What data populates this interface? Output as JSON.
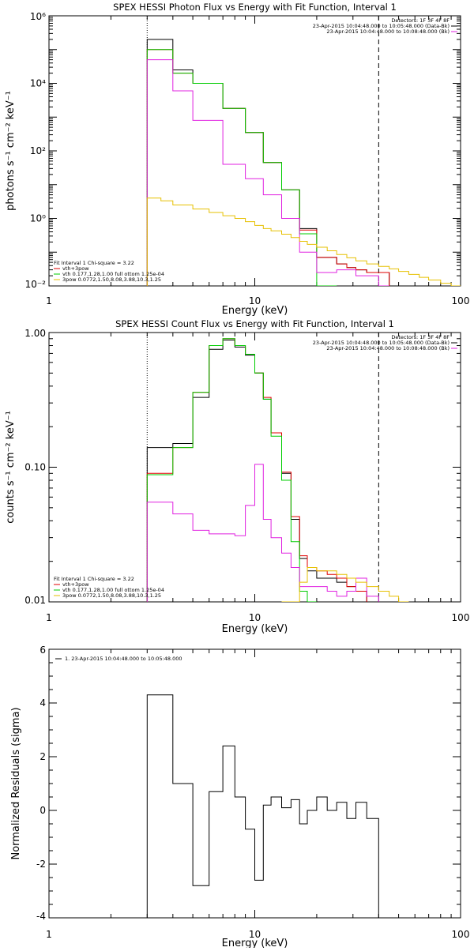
{
  "colors": {
    "black": "#000000",
    "red": "#e00000",
    "green": "#00cc00",
    "magenta": "#e020e0",
    "yellow": "#e6c000"
  },
  "chart_data": [
    {
      "type": "line",
      "title": "SPEX HESSI Photon Flux vs Energy with Fit Function, Interval 1",
      "xlabel": "Energy (keV)",
      "ylabel": "photons s⁻¹ cm⁻² keV⁻¹",
      "x_scale": "log",
      "y_scale": "log",
      "xlim": [
        1,
        100
      ],
      "ylim": [
        0.01,
        1000000
      ],
      "x_ticks": [
        {
          "v": 1,
          "label": "1"
        },
        {
          "v": 10,
          "label": "10"
        },
        {
          "v": 100,
          "label": "100"
        }
      ],
      "y_ticks": [
        {
          "v": 0.01,
          "label": "10⁻²"
        },
        {
          "v": 1,
          "label": "10⁰"
        },
        {
          "v": 100,
          "label": "10²"
        },
        {
          "v": 10000,
          "label": "10⁴"
        },
        {
          "v": 1000000,
          "label": "10⁶"
        }
      ],
      "vlines": [
        {
          "x": 3,
          "style": "dotted"
        },
        {
          "x": 40,
          "style": "dashed"
        }
      ],
      "legend_top_right": [
        {
          "text": "Detectors: 1F 3F 4F 8F",
          "color": ""
        },
        {
          "text": "23-Apr-2015 10:04:48.000 to 10:05:48.000 (Data-Bk)",
          "color": "#000000"
        },
        {
          "text": "23-Apr-2015 10:04:48.000 to 10:08:48.000 (Bk)",
          "color": "#e020e0"
        }
      ],
      "legend_bottom_left": [
        {
          "text": "Fit Interval 1   Chi-square = 3.22",
          "color": ""
        },
        {
          "text": "vth+3pow",
          "color": "#e00000"
        },
        {
          "text": "vth 0.177,1.28,1.00  full ottom 1.25e-04",
          "color": "#00cc00"
        },
        {
          "text": "3pow 0.0772,1.50,8.08,3.88,10.3,1.25",
          "color": "#e6c000"
        }
      ],
      "edges": [
        3,
        3.5,
        4,
        5,
        6,
        7,
        8,
        9,
        10,
        11,
        12,
        13.5,
        15,
        16.5,
        18,
        20,
        22.5,
        25,
        28,
        31,
        35,
        40,
        45,
        50,
        56,
        63,
        70,
        80,
        90,
        100
      ],
      "series": [
        {
          "color": "#000000",
          "values": [
            200000,
            200000,
            25000,
            10000,
            10000,
            1800,
            1800,
            350,
            350,
            45,
            45,
            7,
            7,
            0.5,
            0.5,
            0.07,
            0.07,
            0.045,
            0.035,
            0.03,
            0.025,
            0.025
          ]
        },
        {
          "color": "#e00000",
          "values": [
            100000,
            100000,
            20000,
            10000,
            10000,
            1800,
            1800,
            350,
            350,
            45,
            45,
            7,
            7,
            0.45,
            0.45,
            0.07,
            0.07,
            0.045,
            0.035,
            0.03,
            0.025,
            0.025
          ]
        },
        {
          "color": "#00cc00",
          "values": [
            100000,
            100000,
            20000,
            10000,
            10000,
            1800,
            1800,
            350,
            350,
            45,
            45,
            7,
            7,
            0.35,
            0.35,
            0.01,
            0.005
          ]
        },
        {
          "color": "#e020e0",
          "values": [
            50000,
            50000,
            6000,
            800,
            800,
            40,
            40,
            15,
            15,
            5,
            5,
            1,
            1,
            0.1,
            0.1,
            0.025,
            0.025,
            0.03,
            0.03,
            0.02,
            0.02,
            0.01
          ]
        },
        {
          "color": "#e6c000",
          "values": [
            4,
            3.3,
            2.5,
            1.9,
            1.5,
            1.2,
            1.0,
            0.8,
            0.62,
            0.5,
            0.43,
            0.34,
            0.27,
            0.21,
            0.17,
            0.14,
            0.11,
            0.085,
            0.068,
            0.055,
            0.045,
            0.038,
            0.032,
            0.027,
            0.022,
            0.018,
            0.015,
            0.012,
            0.01
          ]
        }
      ]
    },
    {
      "type": "line",
      "title": "SPEX HESSI Count Flux vs Energy with Fit Function, Interval 1",
      "xlabel": "Energy (keV)",
      "ylabel": "counts s⁻¹ cm⁻² keV⁻¹",
      "x_scale": "log",
      "y_scale": "log",
      "xlim": [
        1,
        100
      ],
      "ylim": [
        0.01,
        1.0
      ],
      "x_ticks": [
        {
          "v": 1,
          "label": "1"
        },
        {
          "v": 10,
          "label": "10"
        },
        {
          "v": 100,
          "label": "100"
        }
      ],
      "y_ticks": [
        {
          "v": 0.01,
          "label": "0.01"
        },
        {
          "v": 0.1,
          "label": "0.10"
        },
        {
          "v": 1,
          "label": "1.00"
        }
      ],
      "vlines": [
        {
          "x": 3,
          "style": "dotted"
        },
        {
          "x": 40,
          "style": "dashed"
        }
      ],
      "legend_top_right": [
        {
          "text": "Detectors: 1F 3F 4F 8F",
          "color": ""
        },
        {
          "text": "23-Apr-2015 10:04:48.000 to 10:05:48.000 (Data-Bk)",
          "color": "#000000"
        },
        {
          "text": "23-Apr-2015 10:04:48.000 to 10:08:48.000 (Bk)",
          "color": "#e020e0"
        }
      ],
      "legend_bottom_left": [
        {
          "text": "Fit Interval 1   Chi-square = 3.22",
          "color": ""
        },
        {
          "text": "vth+3pow",
          "color": "#e00000"
        },
        {
          "text": "vth 0.177,1.28,1.00  full ottom 1.25e-04",
          "color": "#00cc00"
        },
        {
          "text": "3pow 0.0772,1.50,8.08,3.88,10.3,1.25",
          "color": "#e6c000"
        }
      ],
      "edges": [
        3,
        4,
        5,
        6,
        7,
        8,
        9,
        10,
        11,
        12,
        13.5,
        15,
        16.5,
        18,
        20,
        22.5,
        25,
        28,
        31,
        35,
        40,
        45,
        50,
        56
      ],
      "series": [
        {
          "color": "#000000",
          "values": [
            0.14,
            0.15,
            0.33,
            0.75,
            0.88,
            0.78,
            0.68,
            0.5,
            0.32,
            0.18,
            0.09,
            0.041,
            0.021,
            0.017,
            0.015,
            0.015,
            0.014,
            0.013,
            0.012
          ]
        },
        {
          "color": "#e00000",
          "values": [
            0.09,
            0.14,
            0.36,
            0.8,
            0.9,
            0.8,
            0.69,
            0.5,
            0.33,
            0.18,
            0.092,
            0.043,
            0.022,
            0.018,
            0.017,
            0.016,
            0.015,
            0.013,
            0.012
          ]
        },
        {
          "color": "#00cc00",
          "values": [
            0.088,
            0.14,
            0.36,
            0.8,
            0.9,
            0.8,
            0.69,
            0.5,
            0.32,
            0.17,
            0.08,
            0.028,
            0.012,
            0.008
          ]
        },
        {
          "color": "#e020e0",
          "values": [
            0.055,
            0.045,
            0.034,
            0.032,
            0.032,
            0.031,
            0.052,
            0.105,
            0.041,
            0.03,
            0.023,
            0.018,
            0.013,
            0.013,
            0.013,
            0.012,
            0.011,
            0.012,
            0.015,
            0.011
          ]
        },
        {
          "color": "#e6c000",
          "values": [
            null,
            null,
            null,
            null,
            null,
            null,
            null,
            null,
            null,
            null,
            0.008,
            0.01,
            0.014,
            0.018,
            0.017,
            0.017,
            0.016,
            0.015,
            0.014,
            0.013,
            0.012,
            0.011,
            0.01
          ]
        }
      ]
    },
    {
      "type": "line",
      "title": "",
      "xlabel": "Energy (keV)",
      "ylabel": "Normalized Residuals (sigma)",
      "x_scale": "log",
      "y_scale": "linear",
      "xlim": [
        1,
        100
      ],
      "ylim": [
        -4,
        6
      ],
      "x_ticks": [
        {
          "v": 1,
          "label": "1"
        },
        {
          "v": 10,
          "label": "10"
        },
        {
          "v": 100,
          "label": "100"
        }
      ],
      "y_ticks": [
        {
          "v": -4,
          "label": "-4"
        },
        {
          "v": -2,
          "label": "-2"
        },
        {
          "v": 0,
          "label": "0"
        },
        {
          "v": 2,
          "label": "2"
        },
        {
          "v": 4,
          "label": "4"
        },
        {
          "v": 6,
          "label": "6"
        }
      ],
      "vlines": [],
      "legend_top_left": [
        {
          "text": "1. 23-Apr-2015 10:04:48.000 to 10:05:48.000",
          "color": "#000000"
        }
      ],
      "edges": [
        3,
        4,
        5,
        6,
        7,
        8,
        9,
        10,
        11,
        12,
        13.5,
        15,
        16.5,
        18,
        20,
        22.5,
        25,
        28,
        31,
        35,
        40
      ],
      "series": [
        {
          "color": "#000000",
          "values": [
            4.3,
            1.0,
            -2.8,
            0.7,
            2.4,
            0.5,
            -0.7,
            -2.6,
            0.2,
            0.5,
            0.1,
            0.4,
            -0.5,
            0.0,
            0.5,
            0.0,
            0.3,
            -0.3,
            0.3,
            -0.3
          ]
        }
      ]
    }
  ]
}
